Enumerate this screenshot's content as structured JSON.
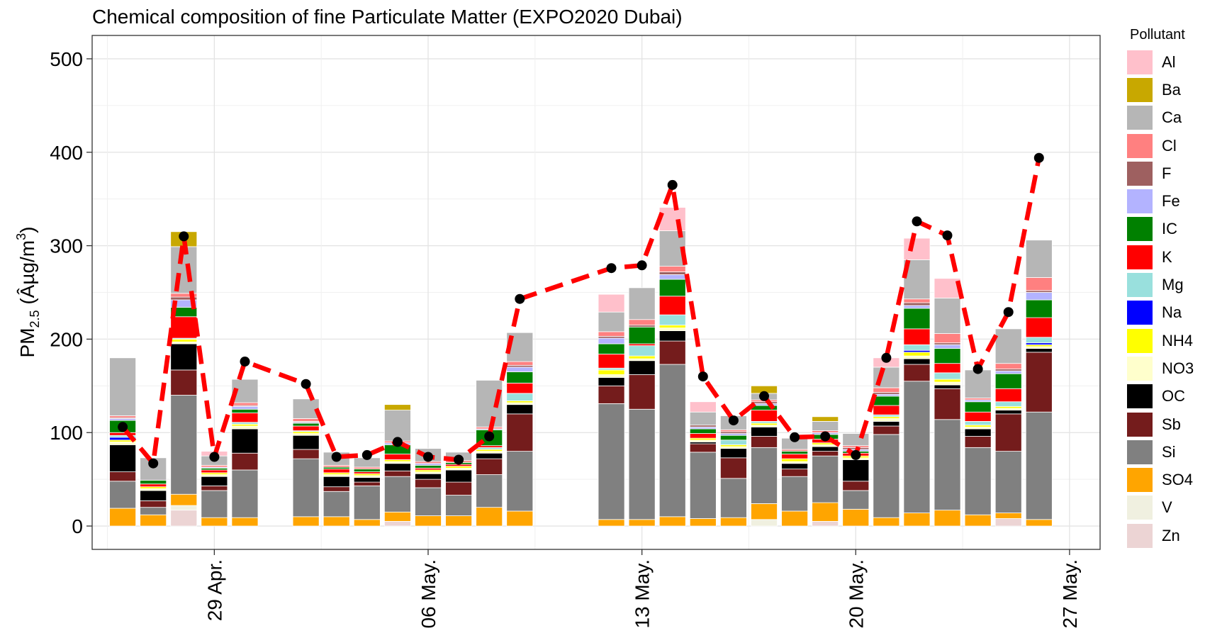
{
  "chart_data": {
    "type": "bar",
    "title": "Chemical composition of fine Particulate Matter (EXPO2020 Dubai)",
    "xlabel": "",
    "ylabel": "PM2.5 (Âµg/m3)",
    "ylabel_parts": {
      "main": "PM",
      "sub": "2.5",
      "unit_pre": " (Âµg/m",
      "sup": "3",
      "unit_post": ")"
    },
    "ylim": [
      -25,
      525
    ],
    "yticks": [
      0,
      100,
      200,
      300,
      400,
      500
    ],
    "ytick_labels": [
      "0",
      "100",
      "200",
      "300",
      "400",
      "500"
    ],
    "x_axis": "date (day of year 2022)",
    "xlim": [
      "2022-04-25",
      "2022-05-28"
    ],
    "xticks": [
      "2022-04-29",
      "2022-05-06",
      "2022-05-13",
      "2022-05-20",
      "2022-05-27"
    ],
    "xtick_labels": [
      "29 Apr.",
      "06 May.",
      "13 May.",
      "20 May.",
      "27 May."
    ],
    "grid": true,
    "legend_position": "right",
    "legend_title": "Pollutant",
    "legend_labels": [
      "Al",
      "Ba",
      "Ca",
      "Cl",
      "F",
      "Fe",
      "IC",
      "K",
      "Mg",
      "Na",
      "NH4",
      "NO3",
      "OC",
      "Sb",
      "Si",
      "SO4",
      "V",
      "Zn"
    ],
    "colors": {
      "Al": "#ffc0cb",
      "Ba": "#c8a800",
      "Ca": "#b6b6b6",
      "Cl": "#ff8080",
      "F": "#9e6060",
      "Fe": "#b3b3ff",
      "IC": "#008000",
      "K": "#ff0000",
      "Mg": "#99e0dd",
      "Na": "#0000ff",
      "NH4": "#ffff00",
      "NO3": "#ffffcc",
      "OC": "#000000",
      "Sb": "#741c1c",
      "Si": "#808080",
      "SO4": "#ffa500",
      "V": "#f0f0e0",
      "Zn": "#ecd4d4"
    },
    "line_series": {
      "name": "PM2.5",
      "color": "#ff0000"
    },
    "bars": [
      {
        "date": "2022-04-26",
        "v": {
          "SO4": 19,
          "Si": 29,
          "Sb": 10,
          "OC": 29,
          "NO3": 3,
          "NH4": 2,
          "Na": 3,
          "Mg": 2,
          "K": 3,
          "IC": 13,
          "Fe": 2,
          "F": 1,
          "Cl": 2,
          "Ca": 62
        }
      },
      {
        "date": "2022-04-27",
        "v": {
          "SO4": 12,
          "Si": 8,
          "Sb": 7,
          "OC": 11,
          "NO3": 2,
          "NH4": 2,
          "K": 3,
          "IC": 4,
          "Ca": 24
        }
      },
      {
        "date": "2022-04-28",
        "v": {
          "Zn": 17,
          "V": 5,
          "SO4": 12,
          "Si": 106,
          "Sb": 27,
          "OC": 28,
          "NO3": 2,
          "NH4": 3,
          "K": 23,
          "IC": 10,
          "Mg": 1,
          "Fe": 8,
          "F": 3,
          "Cl": 4,
          "Ca": 50,
          "Ba": 16
        }
      },
      {
        "date": "2022-04-29",
        "v": {
          "SO4": 9,
          "Si": 29,
          "Sb": 5,
          "OC": 10,
          "NO3": 2,
          "NH4": 2,
          "K": 3,
          "IC": 2,
          "Fe": 1,
          "Cl": 2,
          "Ca": 10,
          "Al": 5
        }
      },
      {
        "date": "2022-04-30",
        "v": {
          "SO4": 9,
          "Si": 51,
          "Sb": 18,
          "OC": 26,
          "NO3": 3,
          "NH4": 2,
          "Mg": 2,
          "K": 10,
          "IC": 4,
          "Fe": 3,
          "F": 1,
          "Cl": 3,
          "Ca": 25
        }
      },
      {
        "date": "2022-05-02",
        "v": {
          "SO4": 10,
          "Si": 62,
          "Sb": 10,
          "OC": 15,
          "NO3": 2,
          "NH4": 2,
          "Mg": 1,
          "K": 5,
          "IC": 3,
          "Fe": 1,
          "F": 1,
          "Cl": 3,
          "Ca": 21
        }
      },
      {
        "date": "2022-05-03",
        "v": {
          "SO4": 10,
          "Si": 27,
          "Sb": 5,
          "OC": 11,
          "NO3": 2,
          "NH4": 2,
          "K": 4,
          "IC": 2,
          "Cl": 2,
          "Ca": 14
        }
      },
      {
        "date": "2022-05-04",
        "v": {
          "SO4": 7,
          "Si": 36,
          "Sb": 4,
          "OC": 5,
          "NO3": 2,
          "NH4": 2,
          "K": 2,
          "IC": 3,
          "Cl": 2,
          "Ca": 10
        }
      },
      {
        "date": "2022-05-05",
        "v": {
          "Zn": 5,
          "SO4": 10,
          "Si": 38,
          "Sb": 6,
          "OC": 8,
          "NO3": 2,
          "NH4": 2,
          "K": 6,
          "IC": 10,
          "Fe": 2,
          "Cl": 2,
          "Ca": 33,
          "Ba": 6
        }
      },
      {
        "date": "2022-05-06",
        "v": {
          "SO4": 11,
          "Si": 30,
          "Sb": 9,
          "OC": 6,
          "NO3": 2,
          "NH4": 2,
          "K": 2,
          "IC": 3,
          "Fe": 2,
          "Cl": 2,
          "Ca": 14
        }
      },
      {
        "date": "2022-05-07",
        "v": {
          "SO4": 11,
          "Si": 22,
          "Sb": 14,
          "OC": 13,
          "NO3": 2,
          "NH4": 2,
          "K": 2,
          "IC": 2,
          "Cl": 2,
          "Ca": 9
        }
      },
      {
        "date": "2022-05-08",
        "v": {
          "SO4": 20,
          "Si": 35,
          "Sb": 17,
          "OC": 6,
          "NO3": 2,
          "NH4": 2,
          "Mg": 2,
          "K": 2,
          "IC": 17,
          "Fe": 1,
          "Cl": 2,
          "Ca": 50
        }
      },
      {
        "date": "2022-05-09",
        "v": {
          "SO4": 16,
          "Si": 64,
          "Sb": 40,
          "OC": 10,
          "NO3": 2,
          "NH4": 2,
          "Mg": 8,
          "K": 11,
          "IC": 12,
          "Fe": 5,
          "F": 2,
          "Cl": 4,
          "Ca": 31
        }
      },
      {
        "date": "2022-05-12",
        "v": {
          "SO4": 7,
          "Si": 124,
          "Sb": 19,
          "OC": 9,
          "NO3": 3,
          "NH4": 5,
          "Mg": 2,
          "K": 15,
          "IC": 11,
          "Fe": 6,
          "F": 2,
          "Cl": 5,
          "Ca": 21,
          "Al": 19
        }
      },
      {
        "date": "2022-05-13",
        "v": {
          "SO4": 7,
          "Si": 118,
          "Sb": 37,
          "OC": 15,
          "NO3": 2,
          "NH4": 3,
          "Mg": 11,
          "K": 2,
          "IC": 18,
          "F": 2,
          "Cl": 6,
          "Ca": 34
        }
      },
      {
        "date": "2022-05-14",
        "v": {
          "SO4": 10,
          "Si": 163,
          "Sb": 25,
          "OC": 11,
          "NO3": 3,
          "NH4": 3,
          "Mg": 11,
          "K": 20,
          "IC": 18,
          "Fe": 5,
          "F": 3,
          "Cl": 6,
          "Ca": 38,
          "Al": 25
        }
      },
      {
        "date": "2022-05-15",
        "v": {
          "SO4": 8,
          "Si": 71,
          "Sb": 9,
          "OC": 2,
          "NO3": 2,
          "NH4": 2,
          "K": 5,
          "IC": 5,
          "Fe": 2,
          "F": 2,
          "Ca": 14,
          "Al": 11
        }
      },
      {
        "date": "2022-05-16",
        "v": {
          "SO4": 9,
          "Si": 42,
          "Sb": 22,
          "OC": 10,
          "NO3": 2,
          "NH4": 2,
          "Mg": 5,
          "IC": 5,
          "Fe": 2,
          "F": 2,
          "Cl": 2,
          "Ca": 15
        }
      },
      {
        "date": "2022-05-17",
        "v": {
          "V": 7,
          "SO4": 17,
          "Si": 60,
          "Sb": 12,
          "OC": 10,
          "NO3": 2,
          "NH4": 2,
          "Mg": 2,
          "K": 12,
          "IC": 5,
          "Fe": 2,
          "F": 2,
          "Cl": 2,
          "Ca": 7,
          "Ba": 8
        }
      },
      {
        "date": "2022-05-18",
        "v": {
          "SO4": 16,
          "Si": 37,
          "Sb": 8,
          "OC": 6,
          "NO3": 2,
          "NH4": 3,
          "K": 5,
          "IC": 3,
          "Cl": 2,
          "Ca": 12
        }
      },
      {
        "date": "2022-05-19",
        "v": {
          "Zn": 5,
          "SO4": 20,
          "Si": 50,
          "Sb": 5,
          "OC": 5,
          "NO3": 2,
          "NH4": 2,
          "K": 4,
          "IC": 5,
          "Fe": 2,
          "Cl": 2,
          "Ca": 10,
          "Ba": 5
        }
      },
      {
        "date": "2022-05-20",
        "v": {
          "SO4": 18,
          "Si": 20,
          "Sb": 10,
          "OC": 23,
          "NO3": 2,
          "NH4": 2,
          "K": 3,
          "IC": 2,
          "Fe": 2,
          "F": 2,
          "Cl": 2,
          "Ca": 13
        }
      },
      {
        "date": "2022-05-21",
        "v": {
          "SO4": 9,
          "Si": 89,
          "Sb": 9,
          "OC": 5,
          "NO3": 3,
          "NH4": 2,
          "Mg": 2,
          "K": 10,
          "IC": 10,
          "Fe": 2,
          "F": 2,
          "Cl": 5,
          "Ca": 22,
          "Al": 10
        }
      },
      {
        "date": "2022-05-22",
        "v": {
          "SO4": 14,
          "Si": 141,
          "Sb": 18,
          "OC": 6,
          "NO3": 3,
          "Na": 2,
          "NH4": 4,
          "Mg": 6,
          "K": 17,
          "IC": 22,
          "Fe": 3,
          "F": 3,
          "Cl": 4,
          "Ca": 42,
          "Al": 23
        }
      },
      {
        "date": "2022-05-23",
        "v": {
          "SO4": 17,
          "Si": 97,
          "Sb": 33,
          "OC": 4,
          "NO3": 3,
          "NH4": 3,
          "Mg": 7,
          "K": 10,
          "IC": 16,
          "Fe": 4,
          "F": 2,
          "Cl": 10,
          "Ca": 38,
          "Al": 21
        }
      },
      {
        "date": "2022-05-24",
        "v": {
          "SO4": 12,
          "Si": 72,
          "Sb": 12,
          "OC": 8,
          "NO3": 2,
          "NH4": 2,
          "Mg": 4,
          "K": 10,
          "IC": 11,
          "Fe": 2,
          "Cl": 2,
          "Ca": 30
        }
      },
      {
        "date": "2022-05-25",
        "v": {
          "Zn": 8,
          "SO4": 6,
          "Si": 66,
          "Sb": 40,
          "OC": 4,
          "NO3": 2,
          "NH4": 2,
          "Mg": 5,
          "K": 14,
          "IC": 16,
          "Fe": 3,
          "F": 2,
          "Cl": 6,
          "Ca": 37
        }
      },
      {
        "date": "2022-05-26",
        "v": {
          "SO4": 7,
          "Si": 115,
          "Sb": 64,
          "OC": 4,
          "NO3": 2,
          "Na": 2,
          "NH4": 2,
          "Mg": 6,
          "K": 21,
          "IC": 19,
          "Fe": 8,
          "F": 2,
          "Cl": 14,
          "Ca": 40
        }
      }
    ],
    "line_points": [
      {
        "date": "2022-04-26",
        "y": 106
      },
      {
        "date": "2022-04-27",
        "y": 67
      },
      {
        "date": "2022-04-28",
        "y": 310
      },
      {
        "date": "2022-04-29",
        "y": 74
      },
      {
        "date": "2022-04-30",
        "y": 176
      },
      {
        "date": "2022-05-02",
        "y": 152
      },
      {
        "date": "2022-05-03",
        "y": 74
      },
      {
        "date": "2022-05-04",
        "y": 76
      },
      {
        "date": "2022-05-05",
        "y": 90
      },
      {
        "date": "2022-05-06",
        "y": 74
      },
      {
        "date": "2022-05-07",
        "y": 71
      },
      {
        "date": "2022-05-08",
        "y": 96
      },
      {
        "date": "2022-05-09",
        "y": 243
      },
      {
        "date": "2022-05-12",
        "y": 276
      },
      {
        "date": "2022-05-13",
        "y": 279
      },
      {
        "date": "2022-05-14",
        "y": 365
      },
      {
        "date": "2022-05-15",
        "y": 160
      },
      {
        "date": "2022-05-16",
        "y": 113
      },
      {
        "date": "2022-05-17",
        "y": 139
      },
      {
        "date": "2022-05-18",
        "y": 95
      },
      {
        "date": "2022-05-19",
        "y": 96
      },
      {
        "date": "2022-05-20",
        "y": 76
      },
      {
        "date": "2022-05-21",
        "y": 180
      },
      {
        "date": "2022-05-22",
        "y": 326
      },
      {
        "date": "2022-05-23",
        "y": 311
      },
      {
        "date": "2022-05-24",
        "y": 168
      },
      {
        "date": "2022-05-25",
        "y": 229
      },
      {
        "date": "2022-05-26",
        "y": 394
      }
    ]
  }
}
